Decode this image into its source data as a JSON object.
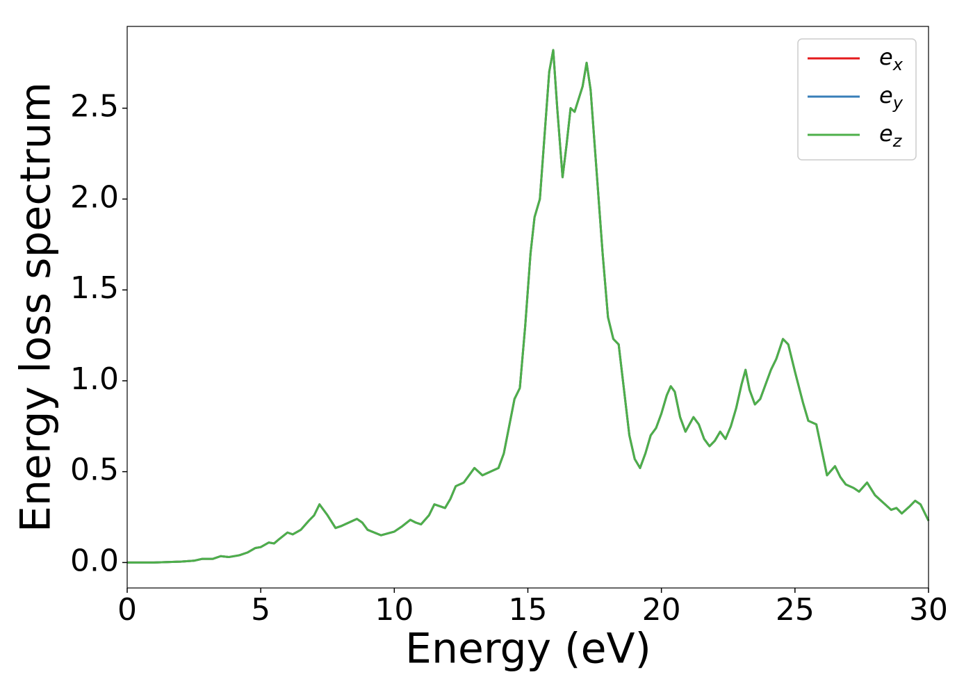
{
  "chart_data": {
    "type": "line",
    "xlabel": "Energy (eV)",
    "ylabel": "Energy loss spectrum",
    "xlim": [
      0,
      30
    ],
    "ylim": [
      -0.14,
      2.95
    ],
    "xticks": [
      0,
      5,
      10,
      15,
      20,
      25,
      30
    ],
    "yticks": [
      {
        "value": 0,
        "label": "0.0"
      },
      0.5,
      {
        "value": 1,
        "label": "1.0"
      },
      1.5,
      {
        "value": 2,
        "label": "2.0"
      },
      2.5
    ],
    "legend": "upper right",
    "x": [
      0,
      1,
      2,
      2.5,
      2.8,
      3.2,
      3.5,
      3.8,
      4.2,
      4.5,
      4.8,
      5.0,
      5.3,
      5.5,
      5.7,
      6.0,
      6.2,
      6.5,
      6.8,
      7.0,
      7.2,
      7.5,
      7.8,
      8.0,
      8.3,
      8.6,
      8.8,
      9.0,
      9.5,
      10.0,
      10.3,
      10.6,
      10.8,
      11.0,
      11.3,
      11.5,
      11.7,
      11.9,
      12.1,
      12.3,
      12.6,
      12.8,
      13.0,
      13.3,
      13.6,
      13.9,
      14.1,
      14.3,
      14.5,
      14.7,
      14.9,
      15.1,
      15.25,
      15.45,
      15.6,
      15.8,
      15.95,
      16.1,
      16.3,
      16.45,
      16.6,
      16.75,
      16.9,
      17.05,
      17.2,
      17.35,
      17.6,
      17.8,
      18.0,
      18.2,
      18.4,
      18.6,
      18.8,
      19.0,
      19.2,
      19.4,
      19.6,
      19.8,
      20.0,
      20.2,
      20.35,
      20.5,
      20.7,
      20.9,
      21.2,
      21.4,
      21.6,
      21.8,
      22.0,
      22.2,
      22.4,
      22.6,
      22.8,
      23.0,
      23.15,
      23.3,
      23.5,
      23.7,
      23.9,
      24.1,
      24.3,
      24.55,
      24.75,
      25.0,
      25.3,
      25.5,
      25.8,
      26.0,
      26.2,
      26.5,
      26.7,
      26.9,
      27.2,
      27.4,
      27.7,
      28.0,
      28.3,
      28.6,
      28.8,
      29.0,
      29.3,
      29.5,
      29.7,
      30.0
    ],
    "series": [
      {
        "name": "e_x",
        "color": "#e41a1c",
        "values": [
          0,
          0,
          0.005,
          0.01,
          0.02,
          0.02,
          0.035,
          0.03,
          0.04,
          0.055,
          0.08,
          0.085,
          0.11,
          0.105,
          0.13,
          0.165,
          0.155,
          0.18,
          0.23,
          0.26,
          0.32,
          0.26,
          0.19,
          0.2,
          0.22,
          0.24,
          0.22,
          0.18,
          0.15,
          0.17,
          0.2,
          0.235,
          0.22,
          0.21,
          0.26,
          0.32,
          0.31,
          0.3,
          0.35,
          0.42,
          0.44,
          0.48,
          0.52,
          0.48,
          0.5,
          0.52,
          0.6,
          0.75,
          0.9,
          0.96,
          1.3,
          1.7,
          1.9,
          2.0,
          2.3,
          2.7,
          2.82,
          2.5,
          2.12,
          2.3,
          2.5,
          2.48,
          2.55,
          2.62,
          2.75,
          2.6,
          2.1,
          1.7,
          1.35,
          1.23,
          1.2,
          0.95,
          0.7,
          0.57,
          0.52,
          0.6,
          0.7,
          0.74,
          0.82,
          0.92,
          0.97,
          0.94,
          0.8,
          0.72,
          0.8,
          0.76,
          0.68,
          0.64,
          0.67,
          0.72,
          0.68,
          0.75,
          0.85,
          0.98,
          1.06,
          0.95,
          0.87,
          0.9,
          0.98,
          1.06,
          1.12,
          1.23,
          1.2,
          1.05,
          0.88,
          0.78,
          0.76,
          0.62,
          0.48,
          0.53,
          0.47,
          0.43,
          0.41,
          0.39,
          0.44,
          0.37,
          0.33,
          0.29,
          0.3,
          0.27,
          0.31,
          0.34,
          0.32,
          0.23
        ]
      },
      {
        "name": "e_y",
        "color": "#377eb8",
        "values": [
          0,
          0,
          0.005,
          0.01,
          0.02,
          0.02,
          0.035,
          0.03,
          0.04,
          0.055,
          0.08,
          0.085,
          0.11,
          0.105,
          0.13,
          0.165,
          0.155,
          0.18,
          0.23,
          0.26,
          0.32,
          0.26,
          0.19,
          0.2,
          0.22,
          0.24,
          0.22,
          0.18,
          0.15,
          0.17,
          0.2,
          0.235,
          0.22,
          0.21,
          0.26,
          0.32,
          0.31,
          0.3,
          0.35,
          0.42,
          0.44,
          0.48,
          0.52,
          0.48,
          0.5,
          0.52,
          0.6,
          0.75,
          0.9,
          0.96,
          1.3,
          1.7,
          1.9,
          2.0,
          2.3,
          2.7,
          2.82,
          2.5,
          2.12,
          2.3,
          2.5,
          2.48,
          2.55,
          2.62,
          2.75,
          2.6,
          2.1,
          1.7,
          1.35,
          1.23,
          1.2,
          0.95,
          0.7,
          0.57,
          0.52,
          0.6,
          0.7,
          0.74,
          0.82,
          0.92,
          0.97,
          0.94,
          0.8,
          0.72,
          0.8,
          0.76,
          0.68,
          0.64,
          0.67,
          0.72,
          0.68,
          0.75,
          0.85,
          0.98,
          1.06,
          0.95,
          0.87,
          0.9,
          0.98,
          1.06,
          1.12,
          1.23,
          1.2,
          1.05,
          0.88,
          0.78,
          0.76,
          0.62,
          0.48,
          0.53,
          0.47,
          0.43,
          0.41,
          0.39,
          0.44,
          0.37,
          0.33,
          0.29,
          0.3,
          0.27,
          0.31,
          0.34,
          0.32,
          0.23
        ]
      },
      {
        "name": "e_z",
        "color": "#4daf4a",
        "values": [
          0,
          0,
          0.005,
          0.01,
          0.02,
          0.02,
          0.035,
          0.03,
          0.04,
          0.055,
          0.08,
          0.085,
          0.11,
          0.105,
          0.13,
          0.165,
          0.155,
          0.18,
          0.23,
          0.26,
          0.32,
          0.26,
          0.19,
          0.2,
          0.22,
          0.24,
          0.22,
          0.18,
          0.15,
          0.17,
          0.2,
          0.235,
          0.22,
          0.21,
          0.26,
          0.32,
          0.31,
          0.3,
          0.35,
          0.42,
          0.44,
          0.48,
          0.52,
          0.48,
          0.5,
          0.52,
          0.6,
          0.75,
          0.9,
          0.96,
          1.3,
          1.7,
          1.9,
          2.0,
          2.3,
          2.7,
          2.82,
          2.5,
          2.12,
          2.3,
          2.5,
          2.48,
          2.55,
          2.62,
          2.75,
          2.6,
          2.1,
          1.7,
          1.35,
          1.23,
          1.2,
          0.95,
          0.7,
          0.57,
          0.52,
          0.6,
          0.7,
          0.74,
          0.82,
          0.92,
          0.97,
          0.94,
          0.8,
          0.72,
          0.8,
          0.76,
          0.68,
          0.64,
          0.67,
          0.72,
          0.68,
          0.75,
          0.85,
          0.98,
          1.06,
          0.95,
          0.87,
          0.9,
          0.98,
          1.06,
          1.12,
          1.23,
          1.2,
          1.05,
          0.88,
          0.78,
          0.76,
          0.62,
          0.48,
          0.53,
          0.47,
          0.43,
          0.41,
          0.39,
          0.44,
          0.37,
          0.33,
          0.29,
          0.3,
          0.27,
          0.31,
          0.34,
          0.32,
          0.23
        ]
      }
    ]
  }
}
